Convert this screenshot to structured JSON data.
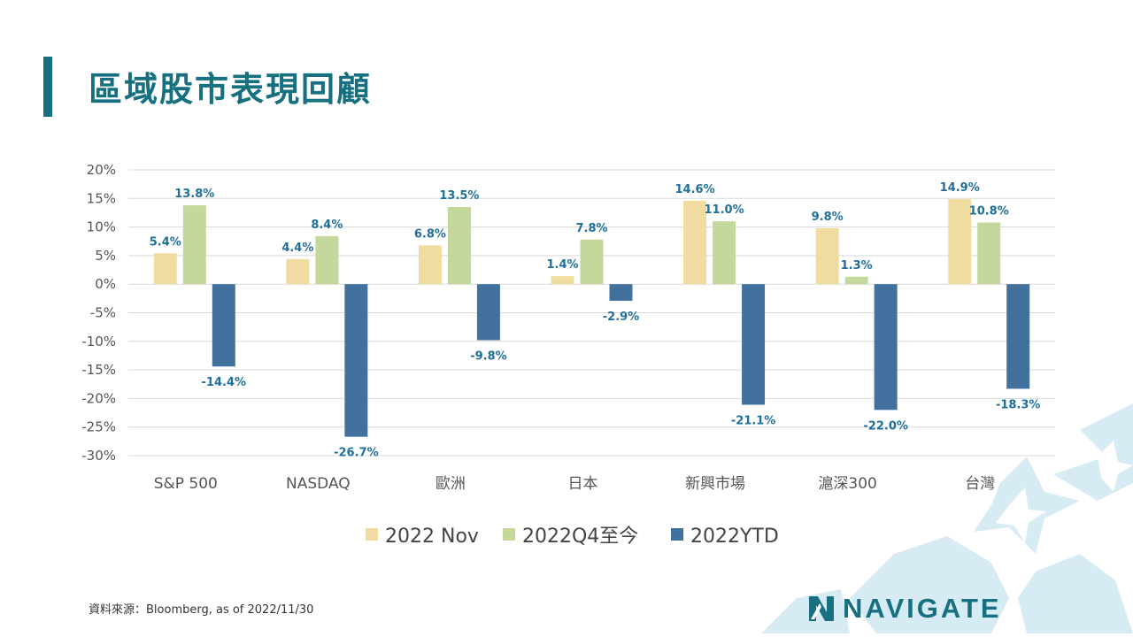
{
  "title": "區域股市表現回顧",
  "source_note": "資料來源：Bloomberg,  as of 2022/11/30",
  "logo_text": "NAVIGATE",
  "colors": {
    "accent": "#16707f",
    "label": "#1f6f9a",
    "grid": "#d9d9d9",
    "series": [
      "#f0dca0",
      "#c5d89b",
      "#41719c"
    ]
  },
  "chart_data": {
    "type": "bar",
    "categories": [
      "S&P 500",
      "NASDAQ",
      "歐洲",
      "日本",
      "新興市場",
      "滬深300",
      "台灣"
    ],
    "series": [
      {
        "name": "2022 Nov",
        "values": [
          5.4,
          4.4,
          6.8,
          1.4,
          14.6,
          9.8,
          14.9
        ]
      },
      {
        "name": "2022Q4至今",
        "values": [
          13.8,
          8.4,
          13.5,
          7.8,
          11.0,
          1.3,
          10.8
        ]
      },
      {
        "name": "2022YTD",
        "values": [
          -14.4,
          -26.7,
          -9.8,
          -2.9,
          -21.1,
          -22.0,
          -18.3
        ]
      }
    ],
    "ylim": [
      -30,
      20
    ],
    "yticks": [
      "20%",
      "15%",
      "10%",
      "5%",
      "0%",
      "-5%",
      "-10%",
      "-15%",
      "-20%",
      "-25%",
      "-30%"
    ],
    "data_labels": [
      [
        "5.4%",
        "4.4%",
        "6.8%",
        "1.4%",
        "14.6%",
        "9.8%",
        "14.9%"
      ],
      [
        "13.8%",
        "8.4%",
        "13.5%",
        "7.8%",
        "11.0%",
        "1.3%",
        "10.8%"
      ],
      [
        "-14.4%",
        "-26.7%",
        "-9.8%",
        "-2.9%",
        "-21.1%",
        "-22.0%",
        "-18.3%"
      ]
    ],
    "grid": true,
    "legend_position": "bottom"
  }
}
